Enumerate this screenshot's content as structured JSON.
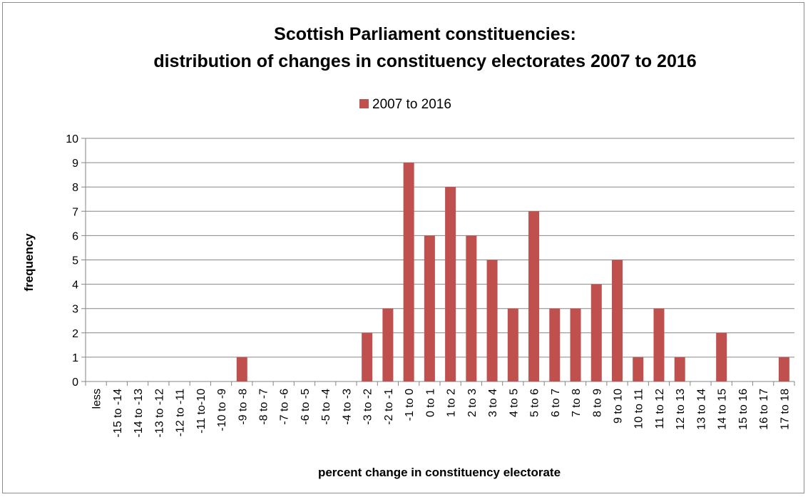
{
  "chart_data": {
    "type": "bar",
    "title_line1": "Scottish Parliament constituencies:",
    "title_line2": "distribution of changes in constituency electorates 2007 to 2016",
    "xlabel": "percent change in constituency electorate",
    "ylabel": "frequency",
    "ylim": [
      0,
      10
    ],
    "yticks": [
      "0",
      "1",
      "2",
      "3",
      "4",
      "5",
      "6",
      "7",
      "8",
      "9",
      "10"
    ],
    "legend_position": "top",
    "grid": true,
    "categories": [
      "less",
      "-15 to -14",
      "-14 to -13",
      "-13 to -12",
      "-12 to -11",
      "-11 to-10",
      "-10 to -9",
      "-9 to -8",
      "-8 to -7",
      "-7 to -6",
      "-6 to -5",
      "-5 to -4",
      "-4 to -3",
      "-3 to -2",
      "-2 to -1",
      "-1 to 0",
      "0 to 1",
      "1 to 2",
      "2 to 3",
      "3 to 4",
      "4 to 5",
      "5 to 6",
      "6 to 7",
      "7 to 8",
      "8 to 9",
      "9 to 10",
      "10 to 11",
      "11 to 12",
      "12 to 13",
      "13 to 14",
      "14 to 15",
      "15 to 16",
      "16 to 17",
      "17 to 18"
    ],
    "series": [
      {
        "name": "2007 to 2016",
        "color": "#c0504d",
        "values": [
          0,
          0,
          0,
          0,
          0,
          0,
          0,
          1,
          0,
          0,
          0,
          0,
          0,
          2,
          3,
          9,
          6,
          8,
          6,
          5,
          3,
          7,
          3,
          3,
          4,
          5,
          1,
          3,
          1,
          0,
          2,
          0,
          0,
          1
        ]
      }
    ]
  }
}
